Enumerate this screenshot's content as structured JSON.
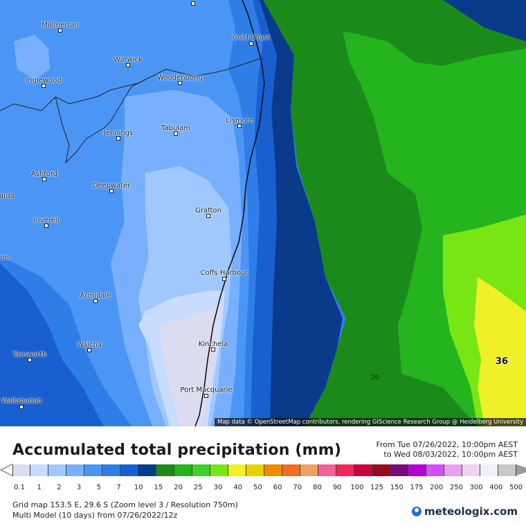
{
  "map": {
    "attribution": "Map data © OpenStreetMap contributors, rendering GIScience Research Group @ Heidelberg University",
    "contour_label": "20",
    "max_value_label": "36",
    "towns": [
      {
        "name": "Millmerran"
      },
      {
        "name": "Gold Coast"
      },
      {
        "name": "Warwick"
      },
      {
        "name": "Inglewood"
      },
      {
        "name": "Woodenbong"
      },
      {
        "name": "Lismore"
      },
      {
        "name": "Tabulam"
      },
      {
        "name": "Jennings"
      },
      {
        "name": "Ashford"
      },
      {
        "name": "Deepwater"
      },
      {
        "name": "alda"
      },
      {
        "name": "Grafton"
      },
      {
        "name": "Inverell"
      },
      {
        "name": "on"
      },
      {
        "name": "Coffs Harbour"
      },
      {
        "name": "Armidale"
      },
      {
        "name": "Walcha"
      },
      {
        "name": "Kinchela"
      },
      {
        "name": "Tamworth"
      },
      {
        "name": "Port Macquarie"
      },
      {
        "name": "Wallabadah"
      }
    ]
  },
  "legend": {
    "title": "Accumulated total precipitation (mm)",
    "period_from": "From Tue 07/26/2022, 10:00pm AEST",
    "period_to": "to Wed 08/03/2022, 10:00pm AEST",
    "ticks": [
      "0.1",
      "1",
      "2",
      "3",
      "5",
      "7",
      "10",
      "15",
      "20",
      "25",
      "30",
      "40",
      "50",
      "60",
      "70",
      "80",
      "90",
      "100",
      "125",
      "150",
      "175",
      "200",
      "250",
      "300",
      "400",
      "500"
    ],
    "colors": [
      "#dcdcf0",
      "#c8dcff",
      "#a0c8ff",
      "#78b0ff",
      "#4b96f5",
      "#2f7ee8",
      "#1a5fd0",
      "#0a3a8a",
      "#1a8a1a",
      "#23b41e",
      "#3cd228",
      "#78e614",
      "#f0f028",
      "#e6d200",
      "#f08c00",
      "#f06e1e",
      "#f0a064",
      "#f06496",
      "#f0285a",
      "#c8003c",
      "#960a1e",
      "#780a78",
      "#b400d2",
      "#d250f0",
      "#e6a0f0",
      "#f0d2f0",
      "#f0f0fa",
      "#c8c8c8"
    ],
    "grid_info": "Grid map 153.5 E, 29.6 S (Zoom level 3 / Resolution 750m)",
    "model_info": "Multi Model (10 days)  from  07/26/2022/12z",
    "brand": "meteologix.com"
  }
}
